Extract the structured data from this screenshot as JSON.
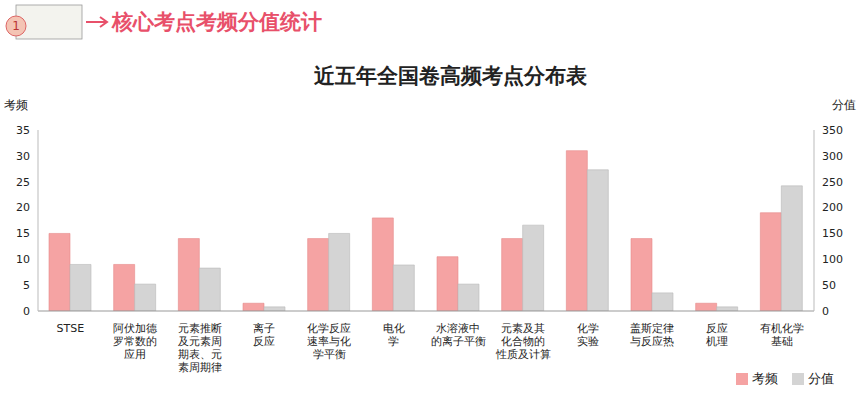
{
  "header": {
    "section_number": "1",
    "text": "核心考点考频分值统计"
  },
  "chart_data": {
    "type": "bar",
    "title": "近五年全国卷高频考点分布表",
    "y_label": "考频",
    "y2_label": "分值",
    "categories": [
      "STSE",
      "阿伏加德罗常数的应用",
      "元素推断及元素周期表、元素周期律",
      "离子反应",
      "化学反应速率与化学平衡",
      "电化学",
      "水溶液中的离子平衡",
      "元素及其化合物的性质及计算",
      "化学实验",
      "盖斯定律与反应热",
      "反应机理",
      "有机化学基础"
    ],
    "series": [
      {
        "name": "考频",
        "color": "#f5a3a3",
        "values": [
          15,
          9,
          14,
          1.5,
          14,
          18,
          10.5,
          14,
          31,
          14,
          1.5,
          19
        ]
      },
      {
        "name": "分值",
        "color": "#d4d4d4",
        "axis": "y2",
        "values": [
          90,
          52,
          83,
          8,
          150,
          89,
          52,
          166,
          273,
          35,
          8,
          242
        ]
      }
    ],
    "ylim": [
      0,
      35
    ],
    "yticks": [
      0,
      5,
      10,
      15,
      20,
      25,
      30,
      35
    ],
    "y2lim": [
      0,
      350
    ],
    "y2ticks": [
      0,
      50,
      100,
      150,
      200,
      250,
      300,
      350
    ],
    "grid": false,
    "legend": "lower right"
  }
}
